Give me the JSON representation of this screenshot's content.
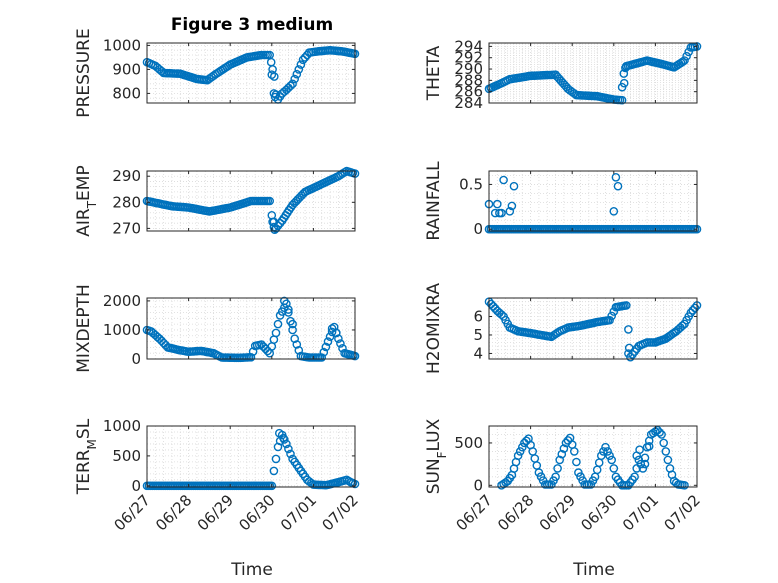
{
  "figure": {
    "title": "Figure 3 medium",
    "xlabel": "Time"
  },
  "style": {
    "marker_color": "#0072BD",
    "grid_color": "#d9d9d9",
    "axis_color": "#262626"
  },
  "chart_data": [
    {
      "type": "scatter",
      "id": "pressure",
      "ylabel": "PRESSURE",
      "ylim": [
        760,
        1010
      ],
      "yticks": [
        800,
        900,
        1000
      ],
      "xlim": [
        "06/27",
        "07/02"
      ],
      "xticks": [
        "06/27",
        "06/28",
        "06/29",
        "06/30",
        "07/01",
        "07/02"
      ],
      "show_xticklabels": false,
      "anchors": [
        [
          0.0,
          930
        ],
        [
          0.2,
          915
        ],
        [
          0.4,
          885
        ],
        [
          0.8,
          882
        ],
        [
          1.2,
          860
        ],
        [
          1.45,
          855
        ],
        [
          1.65,
          880
        ],
        [
          2.0,
          920
        ],
        [
          2.4,
          950
        ],
        [
          2.75,
          960
        ],
        [
          2.95,
          960
        ],
        [
          3.02,
          900
        ],
        [
          3.06,
          870
        ],
        [
          3.1,
          795
        ],
        [
          3.15,
          775
        ],
        [
          3.25,
          800
        ],
        [
          3.35,
          815
        ],
        [
          3.5,
          840
        ],
        [
          3.6,
          880
        ],
        [
          3.75,
          940
        ],
        [
          3.9,
          970
        ],
        [
          4.1,
          975
        ],
        [
          4.4,
          980
        ],
        [
          4.7,
          975
        ],
        [
          5.0,
          965
        ]
      ],
      "extra_points": [
        [
          3.0,
          878
        ],
        [
          3.05,
          800
        ],
        [
          3.08,
          785
        ]
      ]
    },
    {
      "type": "scatter",
      "id": "theta",
      "ylabel": "THETA",
      "ylim": [
        284,
        294.6
      ],
      "yticks": [
        284,
        286,
        288,
        290,
        292,
        294
      ],
      "xlim": [
        "06/27",
        "07/02"
      ],
      "xticks": [
        "06/27",
        "06/28",
        "06/29",
        "06/30",
        "07/01",
        "07/02"
      ],
      "show_xticklabels": false,
      "anchors": [
        [
          0.0,
          286.5
        ],
        [
          0.3,
          287.5
        ],
        [
          0.5,
          288.2
        ],
        [
          1.0,
          288.8
        ],
        [
          1.6,
          289.0
        ],
        [
          1.9,
          286.5
        ],
        [
          2.1,
          285.4
        ],
        [
          2.6,
          285.2
        ],
        [
          3.0,
          284.6
        ],
        [
          3.2,
          284.5
        ],
        [
          3.3,
          290.5
        ],
        [
          3.55,
          291.0
        ],
        [
          3.8,
          291.5
        ],
        [
          4.2,
          290.8
        ],
        [
          4.45,
          290.3
        ],
        [
          4.7,
          291.5
        ],
        [
          4.85,
          293.8
        ],
        [
          5.0,
          294.0
        ]
      ],
      "extra_points": [
        [
          3.2,
          286.8
        ],
        [
          3.24,
          289.2
        ],
        [
          3.28,
          290.2
        ]
      ]
    },
    {
      "type": "scatter",
      "id": "air_temp",
      "ylabel": "AIR_TEMP",
      "ylim": [
        269,
        292
      ],
      "yticks": [
        270,
        280,
        290
      ],
      "xlim": [
        "06/27",
        "07/02"
      ],
      "xticks": [
        "06/27",
        "06/28",
        "06/29",
        "06/30",
        "07/01",
        "07/02"
      ],
      "show_xticklabels": false,
      "anchors": [
        [
          0.0,
          280.5
        ],
        [
          0.3,
          279.5
        ],
        [
          0.6,
          278.5
        ],
        [
          1.0,
          278.0
        ],
        [
          1.5,
          276.5
        ],
        [
          2.0,
          278.0
        ],
        [
          2.5,
          280.5
        ],
        [
          2.95,
          280.5
        ],
        [
          3.0,
          275.0
        ],
        [
          3.1,
          270.0
        ],
        [
          3.25,
          273.0
        ],
        [
          3.5,
          279.0
        ],
        [
          3.8,
          284.0
        ],
        [
          4.2,
          287.0
        ],
        [
          4.6,
          290.0
        ],
        [
          4.8,
          292.0
        ],
        [
          5.0,
          291.0
        ]
      ],
      "extra_points": [
        [
          3.02,
          272.5
        ],
        [
          3.05,
          270.5
        ],
        [
          3.07,
          269.5
        ]
      ]
    },
    {
      "type": "scatter",
      "id": "rainfall",
      "ylabel": "RAINFALL",
      "ylim": [
        -0.02,
        0.65
      ],
      "yticks": [
        0,
        0.5
      ],
      "xlim": [
        "06/27",
        "07/02"
      ],
      "xticks": [
        "06/27",
        "06/28",
        "06/29",
        "06/30",
        "07/01",
        "07/02"
      ],
      "show_xticklabels": false,
      "anchors": [
        [
          0.0,
          0
        ],
        [
          5.0,
          0
        ]
      ],
      "extra_points": [
        [
          0.0,
          0.28
        ],
        [
          0.15,
          0.18
        ],
        [
          0.2,
          0.28
        ],
        [
          0.25,
          0.18
        ],
        [
          0.3,
          0.18
        ],
        [
          0.35,
          0.55
        ],
        [
          0.5,
          0.2
        ],
        [
          0.55,
          0.26
        ],
        [
          0.6,
          0.48
        ],
        [
          3.05,
          0.58
        ],
        [
          3.1,
          0.48
        ],
        [
          3.0,
          0.2
        ]
      ]
    },
    {
      "type": "scatter",
      "id": "mixdepth",
      "ylabel": "MIXDEPTH",
      "ylim": [
        0,
        2100
      ],
      "yticks": [
        0,
        1000,
        2000
      ],
      "xlim": [
        "06/27",
        "07/02"
      ],
      "xticks": [
        "06/27",
        "06/28",
        "06/29",
        "06/30",
        "07/01",
        "07/02"
      ],
      "show_xticklabels": false,
      "anchors": [
        [
          0.0,
          1000
        ],
        [
          0.1,
          950
        ],
        [
          0.3,
          700
        ],
        [
          0.5,
          400
        ],
        [
          0.8,
          300
        ],
        [
          1.0,
          250
        ],
        [
          1.3,
          280
        ],
        [
          1.6,
          200
        ],
        [
          1.8,
          50
        ],
        [
          2.2,
          40
        ],
        [
          2.5,
          60
        ],
        [
          2.6,
          450
        ],
        [
          2.75,
          500
        ],
        [
          2.95,
          200
        ],
        [
          3.1,
          900
        ],
        [
          3.2,
          1500
        ],
        [
          3.35,
          1900
        ],
        [
          3.55,
          700
        ],
        [
          3.7,
          100
        ],
        [
          3.9,
          50
        ],
        [
          4.2,
          50
        ],
        [
          4.35,
          600
        ],
        [
          4.5,
          1100
        ],
        [
          4.6,
          700
        ],
        [
          4.75,
          200
        ],
        [
          5.0,
          100
        ]
      ],
      "extra_points": [
        [
          3.3,
          2000
        ],
        [
          3.4,
          1700
        ],
        [
          3.5,
          1200
        ],
        [
          4.45,
          1050
        ],
        [
          4.55,
          900
        ]
      ]
    },
    {
      "type": "scatter",
      "id": "h2omixra",
      "ylabel": "H2OMIXRA",
      "ylim": [
        3.7,
        7.0
      ],
      "yticks": [
        4,
        5,
        6
      ],
      "xlim": [
        "06/27",
        "07/02"
      ],
      "xticks": [
        "06/27",
        "06/28",
        "06/29",
        "06/30",
        "07/01",
        "07/02"
      ],
      "show_xticklabels": false,
      "anchors": [
        [
          0.0,
          6.8
        ],
        [
          0.2,
          6.3
        ],
        [
          0.35,
          6.0
        ],
        [
          0.5,
          5.4
        ],
        [
          0.7,
          5.2
        ],
        [
          1.0,
          5.1
        ],
        [
          1.25,
          5.0
        ],
        [
          1.5,
          4.9
        ],
        [
          1.7,
          5.2
        ],
        [
          1.9,
          5.4
        ],
        [
          2.2,
          5.5
        ],
        [
          2.6,
          5.7
        ],
        [
          2.9,
          5.8
        ],
        [
          3.05,
          6.5
        ],
        [
          3.3,
          6.6
        ],
        [
          3.35,
          4.0
        ],
        [
          3.4,
          3.8
        ],
        [
          3.6,
          4.4
        ],
        [
          3.8,
          4.6
        ],
        [
          4.0,
          4.6
        ],
        [
          4.25,
          4.8
        ],
        [
          4.5,
          5.2
        ],
        [
          4.7,
          5.6
        ],
        [
          4.85,
          6.2
        ],
        [
          5.0,
          6.6
        ]
      ],
      "extra_points": [
        [
          3.35,
          5.3
        ],
        [
          3.37,
          4.3
        ]
      ]
    },
    {
      "type": "scatter",
      "id": "terr_msl",
      "ylabel": "TERR_MSL",
      "ylim": [
        -20,
        1000
      ],
      "yticks": [
        0,
        500,
        1000
      ],
      "xlim": [
        "06/27",
        "07/02"
      ],
      "xticks": [
        "06/27",
        "06/28",
        "06/29",
        "06/30",
        "07/01",
        "07/02"
      ],
      "show_xticklabels": true,
      "anchors": [
        [
          0.0,
          0
        ],
        [
          3.0,
          0
        ],
        [
          3.05,
          250
        ],
        [
          3.15,
          650
        ],
        [
          3.25,
          850
        ],
        [
          3.35,
          700
        ],
        [
          3.5,
          450
        ],
        [
          3.7,
          250
        ],
        [
          3.85,
          100
        ],
        [
          4.0,
          20
        ],
        [
          4.3,
          10
        ],
        [
          4.6,
          60
        ],
        [
          4.8,
          100
        ],
        [
          4.9,
          60
        ],
        [
          5.0,
          30
        ]
      ],
      "extra_points": [
        [
          3.18,
          880
        ],
        [
          3.28,
          800
        ]
      ]
    },
    {
      "type": "scatter",
      "id": "sun_flux",
      "ylabel": "SUN_FLUX",
      "ylim": [
        -20,
        700
      ],
      "yticks": [
        0,
        500
      ],
      "xlim": [
        "06/27",
        "07/02"
      ],
      "xticks": [
        "06/27",
        "06/28",
        "06/29",
        "06/30",
        "07/01",
        "07/02"
      ],
      "show_xticklabels": true,
      "anchors": [
        [
          0.3,
          0
        ],
        [
          0.45,
          50
        ],
        [
          0.55,
          120
        ],
        [
          0.7,
          350
        ],
        [
          0.85,
          500
        ],
        [
          0.95,
          550
        ],
        [
          1.05,
          400
        ],
        [
          1.2,
          150
        ],
        [
          1.35,
          10
        ],
        [
          1.5,
          10
        ],
        [
          1.6,
          100
        ],
        [
          1.7,
          300
        ],
        [
          1.85,
          500
        ],
        [
          1.95,
          560
        ],
        [
          2.05,
          400
        ],
        [
          2.15,
          150
        ],
        [
          2.3,
          10
        ],
        [
          2.45,
          10
        ],
        [
          2.55,
          100
        ],
        [
          2.7,
          350
        ],
        [
          2.8,
          450
        ],
        [
          2.95,
          300
        ],
        [
          3.05,
          100
        ],
        [
          3.2,
          0
        ],
        [
          3.35,
          0
        ],
        [
          3.5,
          100
        ],
        [
          3.6,
          300
        ],
        [
          3.7,
          200
        ],
        [
          3.8,
          450
        ],
        [
          3.9,
          600
        ],
        [
          4.05,
          650
        ],
        [
          4.15,
          600
        ],
        [
          4.25,
          400
        ],
        [
          4.35,
          200
        ],
        [
          4.45,
          50
        ],
        [
          4.55,
          10
        ],
        [
          4.7,
          0
        ]
      ],
      "extra_points": [
        [
          3.55,
          350
        ],
        [
          3.62,
          420
        ],
        [
          3.75,
          250
        ],
        [
          3.85,
          460
        ]
      ]
    }
  ]
}
